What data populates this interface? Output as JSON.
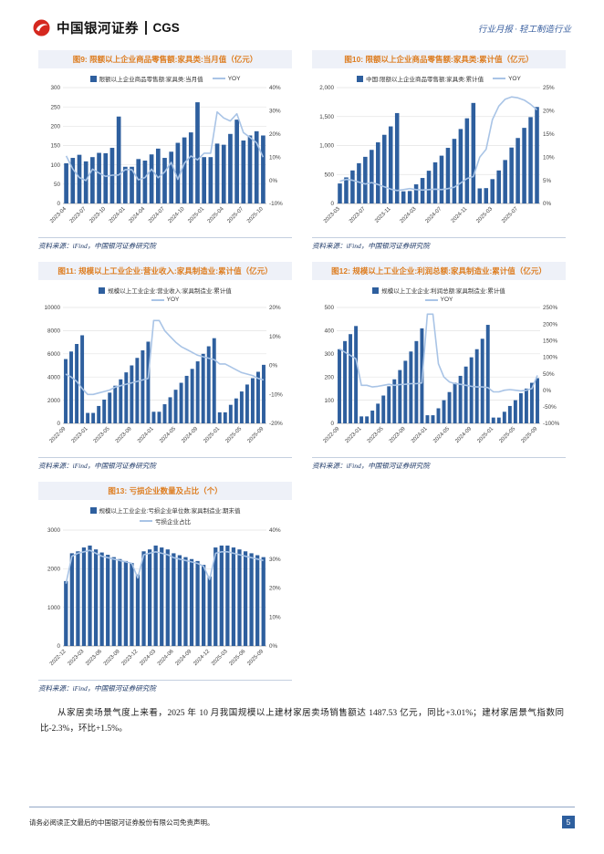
{
  "header": {
    "brand": "中国银河证券",
    "brand_en": "CGS",
    "right_text": "行业月报 · 轻工制造行业"
  },
  "source_note": "资料来源：iFind，中国银河证券研究院",
  "paragraph": "从家居卖场景气度上来看，2025 年 10 月我国规模以上建材家居卖场销售额达 1487.53 亿元，同比+3.01%；建材家居景气指数同比-2.3%，环比+1.5%。",
  "footer": {
    "disclaimer": "请务必阅读正文最后的中国银河证券股份有限公司免责声明。",
    "page_number": "5"
  },
  "colors": {
    "bar": "#2e5f9e",
    "line": "#a9c4e6",
    "title_text": "#dd7d20",
    "title_bg": "#eef1f8",
    "source_text": "#1f3a68",
    "accent": "#2e5f9e",
    "logo_red": "#d5281f"
  },
  "chart_data": [
    {
      "id": "fig9",
      "type": "bar",
      "title": "图9: 限额以上企业商品零售额:家具类:当月值（亿元）",
      "legend": {
        "bar": "限额以上企业商品零售额:家具类:当月值",
        "line": "YOY",
        "stacked": false
      },
      "categories": [
        "2023-04",
        "2023-05",
        "2023-06",
        "2023-07",
        "2023-08",
        "2023-09",
        "2023-10",
        "2023-11",
        "2023-12",
        "2024-01",
        "2024-02",
        "2024-03",
        "2024-04",
        "2024-05",
        "2024-06",
        "2024-07",
        "2024-08",
        "2024-09",
        "2024-10",
        "2024-11",
        "2024-12",
        "2025-01",
        "2025-02",
        "2025-03",
        "2025-04",
        "2025-05",
        "2025-06",
        "2025-07",
        "2025-08",
        "2025-09",
        "2025-10"
      ],
      "x_ticks": [
        "2023-04",
        "2023-07",
        "2023-10",
        "2024-01",
        "2024-04",
        "2024-07",
        "2024-10",
        "2025-01",
        "2025-04",
        "2025-07",
        "2025-10"
      ],
      "bar_values": [
        104,
        118,
        126,
        109,
        120,
        131,
        130,
        144,
        225,
        95,
        95,
        115,
        111,
        127,
        142,
        118,
        134,
        157,
        171,
        184,
        262,
        120,
        120,
        155,
        152,
        180,
        217,
        163,
        176,
        187,
        176
      ],
      "line_values": [
        10.5,
        4.9,
        1.2,
        -0.1,
        4.8,
        3.1,
        1.7,
        2.2,
        2.3,
        4.6,
        4.6,
        0.2,
        1.2,
        4.8,
        1.1,
        3.6,
        7.7,
        0.4,
        7.4,
        10.5,
        8.8,
        11.7,
        11.7,
        29.5,
        26.9,
        25.6,
        28.7,
        20.6,
        18.5,
        16.2,
        10.0
      ],
      "y_left": {
        "min": 0,
        "max": 300,
        "tick_values": [
          0,
          50,
          100,
          150,
          200,
          250,
          300
        ],
        "tick_labels": [
          "0",
          "50",
          "100",
          "150",
          "200",
          "250",
          "300"
        ]
      },
      "y_right": {
        "min": -10,
        "max": 40,
        "tick_values": [
          -10,
          0,
          10,
          20,
          30,
          40
        ],
        "tick_labels": [
          "-10%",
          "0%",
          "10%",
          "20%",
          "30%",
          "40%"
        ]
      }
    },
    {
      "id": "fig10",
      "type": "bar",
      "title": "图10: 限额以上企业商品零售额:家具类:累计值（亿元）",
      "legend": {
        "bar": "中国:限额以上企业商品零售额:家具类:累计值",
        "line": "YOY",
        "stacked": false
      },
      "categories": [
        "2023-03",
        "2023-04",
        "2023-05",
        "2023-06",
        "2023-07",
        "2023-08",
        "2023-09",
        "2023-10",
        "2023-11",
        "2023-12",
        "2024-01",
        "2024-02",
        "2024-03",
        "2024-04",
        "2024-05",
        "2024-06",
        "2024-07",
        "2024-08",
        "2024-09",
        "2024-10",
        "2024-11",
        "2024-12",
        "2025-01",
        "2025-02",
        "2025-03",
        "2025-04",
        "2025-05",
        "2025-06",
        "2025-07",
        "2025-08",
        "2025-09",
        "2025-10"
      ],
      "x_ticks": [
        "2023-03",
        "2023-07",
        "2023-11",
        "2024-03",
        "2024-07",
        "2024-11",
        "2025-03",
        "2025-07"
      ],
      "bar_values": [
        345,
        450,
        570,
        695,
        805,
        925,
        1055,
        1185,
        1330,
        1560,
        210,
        215,
        330,
        440,
        565,
        710,
        825,
        960,
        1115,
        1285,
        1470,
        1735,
        260,
        265,
        420,
        570,
        750,
        965,
        1130,
        1305,
        1490,
        1665
      ],
      "line_values": [
        4.8,
        5.2,
        5.0,
        4.6,
        4.2,
        4.5,
        4.1,
        3.6,
        3.1,
        2.8,
        3.0,
        3.2,
        3.0,
        2.9,
        3.0,
        3.1,
        3.0,
        3.2,
        3.5,
        4.4,
        5.4,
        5.8,
        10.0,
        11.7,
        18.1,
        21.0,
        22.5,
        23.0,
        22.8,
        22.3,
        21.4,
        20.2
      ],
      "y_left": {
        "min": 0,
        "max": 2000,
        "tick_values": [
          0,
          500,
          1000,
          1500,
          2000
        ],
        "tick_labels": [
          "0",
          "500",
          "1,000",
          "1,500",
          "2,000"
        ]
      },
      "y_right": {
        "min": 0,
        "max": 25,
        "tick_values": [
          0,
          5,
          10,
          15,
          20,
          25
        ],
        "tick_labels": [
          "0%",
          "5%",
          "10%",
          "15%",
          "20%",
          "25%"
        ]
      }
    },
    {
      "id": "fig11",
      "type": "bar",
      "title": "图11: 规模以上工业企业:营业收入:家具制造业:累计值（亿元）",
      "legend": {
        "bar": "规模以上工业企业:营业收入:家具制造业:累计值",
        "line": "YOY",
        "stacked": true
      },
      "categories": [
        "2022-09",
        "2022-10",
        "2022-11",
        "2022-12",
        "2023-01",
        "2023-02",
        "2023-03",
        "2023-04",
        "2023-05",
        "2023-06",
        "2023-07",
        "2023-08",
        "2023-09",
        "2023-10",
        "2023-11",
        "2023-12",
        "2024-01",
        "2024-02",
        "2024-03",
        "2024-04",
        "2024-05",
        "2024-06",
        "2024-07",
        "2024-08",
        "2024-09",
        "2024-10",
        "2024-11",
        "2024-12",
        "2025-01",
        "2025-02",
        "2025-03",
        "2025-04",
        "2025-05",
        "2025-06",
        "2025-07",
        "2025-08",
        "2025-09"
      ],
      "x_ticks": [
        "2022-09",
        "2023-01",
        "2023-05",
        "2023-09",
        "2024-01",
        "2024-05",
        "2024-09",
        "2025-01",
        "2025-05",
        "2025-09"
      ],
      "bar_values": [
        5550,
        6200,
        6850,
        7600,
        900,
        900,
        1500,
        2050,
        2650,
        3250,
        3800,
        4400,
        5000,
        5650,
        6300,
        7050,
        1000,
        1000,
        1650,
        2250,
        2900,
        3500,
        4100,
        4700,
        5350,
        6000,
        6650,
        7350,
        950,
        950,
        1600,
        2150,
        2750,
        3350,
        3900,
        4450,
        5050
      ],
      "line_values": [
        -3,
        -4,
        -5.5,
        -8,
        -10,
        -10,
        -9.5,
        -9,
        -8.5,
        -7.5,
        -7,
        -6.5,
        -6,
        -5.5,
        -5,
        -4.5,
        15.5,
        15.5,
        12,
        10,
        8,
        6.5,
        5.5,
        4.5,
        3.5,
        3,
        2.5,
        2,
        0.5,
        0.5,
        -0.5,
        -1.5,
        -2.5,
        -3,
        -3.5,
        -4.5,
        -5
      ],
      "y_left": {
        "min": 0,
        "max": 10000,
        "tick_values": [
          0,
          2000,
          4000,
          6000,
          8000,
          10000
        ],
        "tick_labels": [
          "0",
          "2000",
          "4000",
          "6000",
          "8000",
          "10000"
        ]
      },
      "y_right": {
        "min": -20,
        "max": 20,
        "tick_values": [
          -20,
          -10,
          0,
          10,
          20
        ],
        "tick_labels": [
          "-20%",
          "-10%",
          "0%",
          "10%",
          "20%"
        ]
      }
    },
    {
      "id": "fig12",
      "type": "bar",
      "title": "图12: 规模以上工业企业:利润总额:家具制造业:累计值（亿元）",
      "legend": {
        "bar": "规模以上工业企业:利润总额:家具制造业:累计值",
        "line": "YOY",
        "stacked": true
      },
      "categories": [
        "2022-09",
        "2022-10",
        "2022-11",
        "2022-12",
        "2023-01",
        "2023-02",
        "2023-03",
        "2023-04",
        "2023-05",
        "2023-06",
        "2023-07",
        "2023-08",
        "2023-09",
        "2023-10",
        "2023-11",
        "2023-12",
        "2024-01",
        "2024-02",
        "2024-03",
        "2024-04",
        "2024-05",
        "2024-06",
        "2024-07",
        "2024-08",
        "2024-09",
        "2024-10",
        "2024-11",
        "2024-12",
        "2025-01",
        "2025-02",
        "2025-03",
        "2025-04",
        "2025-05",
        "2025-06",
        "2025-07",
        "2025-08",
        "2025-09"
      ],
      "x_ticks": [
        "2022-09",
        "2023-01",
        "2023-05",
        "2023-09",
        "2024-01",
        "2024-05",
        "2024-09",
        "2025-01",
        "2025-05",
        "2025-09"
      ],
      "bar_values": [
        320,
        355,
        385,
        420,
        30,
        30,
        55,
        85,
        120,
        160,
        190,
        230,
        270,
        310,
        355,
        410,
        35,
        35,
        65,
        100,
        135,
        175,
        205,
        245,
        285,
        320,
        365,
        425,
        25,
        25,
        50,
        75,
        100,
        130,
        150,
        175,
        195
      ],
      "line_values": [
        125,
        115,
        105,
        95,
        15,
        15,
        10,
        12,
        15,
        18,
        15,
        17,
        18,
        20,
        20,
        22,
        230,
        230,
        80,
        40,
        25,
        20,
        18,
        15,
        12,
        10,
        10,
        8,
        -5,
        -5,
        0,
        2,
        0,
        -2,
        0,
        5,
        45
      ],
      "y_left": {
        "min": 0,
        "max": 500,
        "tick_values": [
          0,
          100,
          200,
          300,
          400,
          500
        ],
        "tick_labels": [
          "0",
          "100",
          "200",
          "300",
          "400",
          "500"
        ]
      },
      "y_right": {
        "min": -100,
        "max": 250,
        "tick_values": [
          -100,
          -50,
          0,
          50,
          100,
          150,
          200,
          250
        ],
        "tick_labels": [
          "-100%",
          "-50%",
          "0%",
          "50%",
          "100%",
          "150%",
          "200%",
          "250%"
        ]
      }
    },
    {
      "id": "fig13",
      "type": "bar",
      "title": "图13: 亏损企业数量及占比（个）",
      "legend": {
        "bar": "规模以上工业企业:亏损企业单位数:家具制造业:期末值",
        "line": "亏损企业占比",
        "stacked": true
      },
      "categories": [
        "2022-12",
        "2023-01",
        "2023-02",
        "2023-03",
        "2023-04",
        "2023-05",
        "2023-06",
        "2023-07",
        "2023-08",
        "2023-09",
        "2023-10",
        "2023-11",
        "2023-12",
        "2024-01",
        "2024-02",
        "2024-03",
        "2024-04",
        "2024-05",
        "2024-06",
        "2024-07",
        "2024-08",
        "2024-09",
        "2024-10",
        "2024-11",
        "2024-12",
        "2025-01",
        "2025-02",
        "2025-03",
        "2025-04",
        "2025-05",
        "2025-06",
        "2025-07",
        "2025-08",
        "2025-09"
      ],
      "x_ticks": [
        "2022-12",
        "2023-03",
        "2023-06",
        "2023-09",
        "2023-12",
        "2024-03",
        "2024-06",
        "2024-09",
        "2024-12",
        "2025-03",
        "2025-06",
        "2025-09"
      ],
      "bar_values": [
        1680,
        2400,
        2450,
        2550,
        2600,
        2500,
        2420,
        2360,
        2300,
        2250,
        2200,
        2150,
        1850,
        2450,
        2500,
        2600,
        2550,
        2500,
        2400,
        2350,
        2300,
        2250,
        2200,
        2100,
        1800,
        2550,
        2600,
        2600,
        2550,
        2500,
        2450,
        2400,
        2350,
        2300
      ],
      "line_values": [
        21.5,
        31,
        32,
        32.5,
        33,
        32,
        31,
        30.5,
        30,
        29.5,
        29,
        28.5,
        23.5,
        31.5,
        32,
        32.5,
        32,
        31.5,
        30.5,
        30,
        29.5,
        29,
        28.5,
        27.5,
        23,
        32,
        32.5,
        32.5,
        32,
        31.5,
        31,
        30.5,
        30,
        29.5
      ],
      "y_left": {
        "min": 0,
        "max": 3000,
        "tick_values": [
          0,
          1000,
          2000,
          3000
        ],
        "tick_labels": [
          "0",
          "1000",
          "2000",
          "3000"
        ]
      },
      "y_right": {
        "min": 0,
        "max": 40,
        "tick_values": [
          0,
          10,
          20,
          30,
          40
        ],
        "tick_labels": [
          "0%",
          "10%",
          "20%",
          "30%",
          "40%"
        ]
      }
    }
  ]
}
